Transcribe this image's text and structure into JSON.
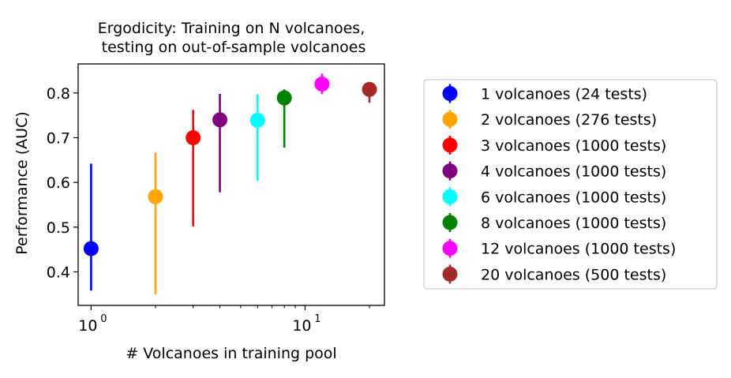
{
  "chart_data": {
    "type": "scatter",
    "title_lines": [
      "Ergodicity: Training on N volcanoes,",
      "testing on out-of-sample volcanoes"
    ],
    "xlabel": "# Volcanoes in training pool",
    "ylabel": "Performance (AUC)",
    "x_scale": "log",
    "xlim": [
      0.87,
      23.5
    ],
    "ylim": [
      0.325,
      0.865
    ],
    "yticks": [
      0.4,
      0.5,
      0.6,
      0.7,
      0.8
    ],
    "ytick_labels": [
      "0.4",
      "0.5",
      "0.6",
      "0.7",
      "0.8"
    ],
    "xticks_major": [
      {
        "value": 1,
        "base": "10",
        "exp": "0"
      },
      {
        "value": 10,
        "base": "10",
        "exp": "1"
      }
    ],
    "xticks_minor": [
      2,
      3,
      4,
      5,
      6,
      7,
      8,
      9,
      20
    ],
    "legend_position": "right, outside plot",
    "series": [
      {
        "name": "1 volcanoes (24 tests)",
        "x": 1,
        "y": 0.452,
        "err_low": 0.358,
        "err_high": 0.642,
        "color": "#0000ff"
      },
      {
        "name": "2 volcanoes (276 tests)",
        "x": 2,
        "y": 0.568,
        "err_low": 0.35,
        "err_high": 0.667,
        "color": "#ffa500"
      },
      {
        "name": "3 volcanoes (1000 tests)",
        "x": 3,
        "y": 0.7,
        "err_low": 0.502,
        "err_high": 0.762,
        "color": "#ff0000"
      },
      {
        "name": "4 volcanoes (1000 tests)",
        "x": 4,
        "y": 0.74,
        "err_low": 0.578,
        "err_high": 0.798,
        "color": "#800080"
      },
      {
        "name": "6 volcanoes (1000 tests)",
        "x": 6,
        "y": 0.739,
        "err_low": 0.604,
        "err_high": 0.797,
        "color": "#00ffff"
      },
      {
        "name": "8 volcanoes (1000 tests)",
        "x": 8,
        "y": 0.789,
        "err_low": 0.678,
        "err_high": 0.808,
        "color": "#008000"
      },
      {
        "name": "12 volcanoes (1000 tests)",
        "x": 12,
        "y": 0.82,
        "err_low": 0.798,
        "err_high": 0.843,
        "color": "#ff00ff"
      },
      {
        "name": "20 volcanoes (500 tests)",
        "x": 20,
        "y": 0.808,
        "err_low": 0.778,
        "err_high": 0.82,
        "color": "#a52a2a"
      }
    ]
  }
}
